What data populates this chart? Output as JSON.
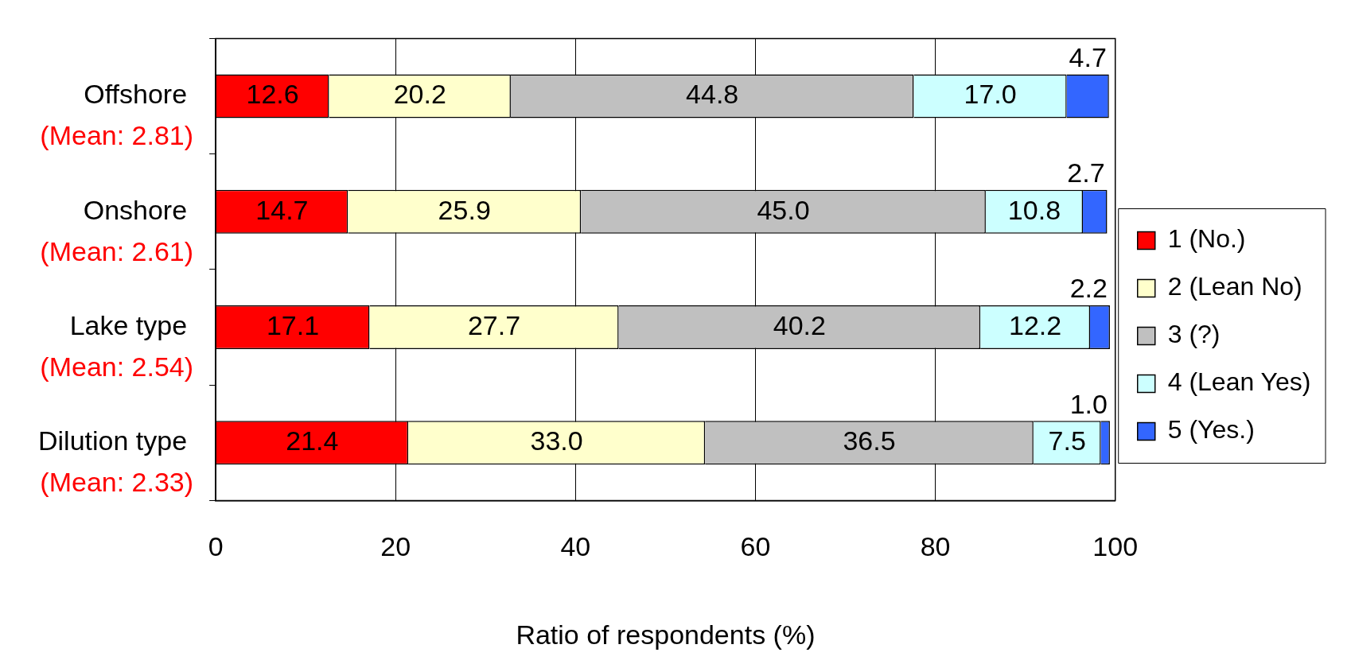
{
  "chart_data": {
    "type": "bar",
    "orientation": "horizontal",
    "stacked": true,
    "xlabel": "Ratio of respondents (%)",
    "categories": [
      "Offshore",
      "Onshore",
      "Lake type",
      "Dilution type"
    ],
    "series": [
      {
        "name": "1 (No.)",
        "color": "#ff0000",
        "values": [
          12.6,
          14.7,
          17.1,
          21.4
        ],
        "value_labels": [
          "12.6",
          "14.7",
          "17.1",
          "21.4"
        ]
      },
      {
        "name": "2 (Lean No)",
        "color": "#ffffcc",
        "values": [
          20.2,
          25.9,
          27.7,
          33.0
        ],
        "value_labels": [
          "20.2",
          "25.9",
          "27.7",
          "33.0"
        ]
      },
      {
        "name": "3 (?)",
        "color": "#c0c0c0",
        "values": [
          44.8,
          45.0,
          40.2,
          36.5
        ],
        "value_labels": [
          "44.8",
          "45.0",
          "40.2",
          "36.5"
        ]
      },
      {
        "name": "4 (Lean Yes)",
        "color": "#ccffff",
        "values": [
          17.0,
          10.8,
          12.2,
          7.5
        ],
        "value_labels": [
          "17.0",
          "10.8",
          "12.2",
          "7.5"
        ]
      },
      {
        "name": "5 (Yes.)",
        "color": "#3366ff",
        "values": [
          4.7,
          2.7,
          2.2,
          1.0
        ],
        "value_labels": [
          "4.7",
          "2.7",
          "2.2",
          "1.0"
        ]
      }
    ],
    "annotations": [
      "(Mean: 2.81)",
      "(Mean: 2.61)",
      "(Mean: 2.54)",
      "(Mean: 2.33)"
    ],
    "xlim": [
      0,
      100
    ],
    "xticks": [
      0,
      20,
      40,
      60,
      80,
      100
    ],
    "grid": "x",
    "legend": "right"
  }
}
